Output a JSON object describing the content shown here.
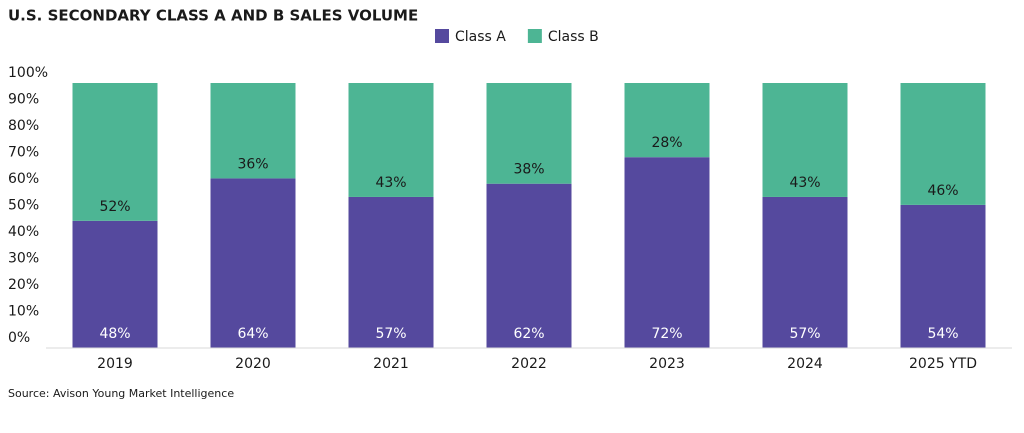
{
  "chart_data": {
    "type": "stacked_bar",
    "title": "U.S. SECONDARY CLASS A AND B SALES VOLUME",
    "source": "Source: Avison Young Market Intelligence",
    "categories": [
      "2019",
      "2020",
      "2021",
      "2022",
      "2023",
      "2024",
      "2025 YTD"
    ],
    "series": [
      {
        "name": "Class A",
        "color": "#55499e",
        "values": [
          48,
          64,
          57,
          62,
          72,
          57,
          54
        ],
        "value_labels": [
          "48%",
          "64%",
          "57%",
          "62%",
          "72%",
          "57%",
          "54%"
        ],
        "label_color": "#ffffff"
      },
      {
        "name": "Class B",
        "color": "#4db594",
        "values": [
          52,
          36,
          43,
          38,
          28,
          43,
          46
        ],
        "value_labels": [
          "52%",
          "36%",
          "43%",
          "38%",
          "28%",
          "43%",
          "46%"
        ],
        "label_color": "#1a1a1a"
      }
    ],
    "ylim": [
      0,
      100
    ],
    "yticks": [
      {
        "value": 0,
        "label": "0%"
      },
      {
        "value": 10,
        "label": "10%"
      },
      {
        "value": 20,
        "label": "20%"
      },
      {
        "value": 30,
        "label": "30%"
      },
      {
        "value": 40,
        "label": "40%"
      },
      {
        "value": 50,
        "label": "50%"
      },
      {
        "value": 60,
        "label": "60%"
      },
      {
        "value": 70,
        "label": "70%"
      },
      {
        "value": 80,
        "label": "80%"
      },
      {
        "value": 90,
        "label": "90%"
      },
      {
        "value": 100,
        "label": "100%"
      }
    ],
    "grid": false,
    "legend": "top"
  }
}
